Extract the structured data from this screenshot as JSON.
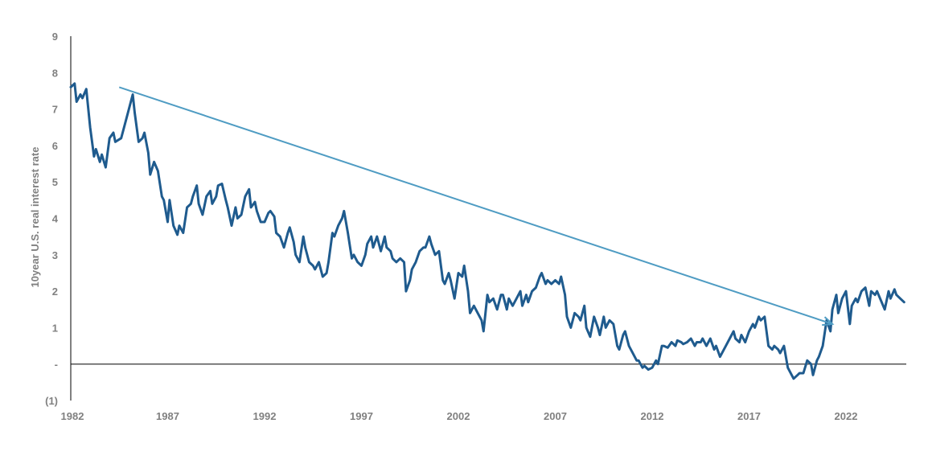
{
  "chart_data": {
    "type": "line",
    "title": "",
    "xlabel": "",
    "ylabel": "10year U.S. real interest rate",
    "xlim": [
      1982,
      2025.4
    ],
    "ylim": [
      -1,
      9
    ],
    "x_ticks": [
      "1982",
      "1987",
      "1992",
      "1997",
      "2002",
      "2007",
      "2012",
      "2017",
      "2022"
    ],
    "y_ticks": [
      {
        "value": 9,
        "label": "9"
      },
      {
        "value": 8,
        "label": "8"
      },
      {
        "value": 7,
        "label": "7"
      },
      {
        "value": 6,
        "label": "6"
      },
      {
        "value": 5,
        "label": "5"
      },
      {
        "value": 4,
        "label": "4"
      },
      {
        "value": 3,
        "label": "3"
      },
      {
        "value": 2,
        "label": "2"
      },
      {
        "value": 1,
        "label": "1"
      },
      {
        "value": 0,
        "label": "-"
      },
      {
        "value": -1,
        "label": "(1)"
      }
    ],
    "grid": false,
    "zero_line": true,
    "series": [
      {
        "color": "#1f5b8e",
        "points": [
          [
            1982.0,
            7.6
          ],
          [
            1982.2,
            7.7
          ],
          [
            1982.3,
            7.2
          ],
          [
            1982.5,
            7.4
          ],
          [
            1982.6,
            7.3
          ],
          [
            1982.8,
            7.55
          ],
          [
            1983.0,
            6.5
          ],
          [
            1983.2,
            5.7
          ],
          [
            1983.3,
            5.9
          ],
          [
            1983.5,
            5.55
          ],
          [
            1983.6,
            5.75
          ],
          [
            1983.8,
            5.4
          ],
          [
            1984.0,
            6.2
          ],
          [
            1984.2,
            6.35
          ],
          [
            1984.3,
            6.1
          ],
          [
            1984.6,
            6.2
          ],
          [
            1984.8,
            6.6
          ],
          [
            1985.0,
            7.0
          ],
          [
            1985.2,
            7.4
          ],
          [
            1985.3,
            6.9
          ],
          [
            1985.5,
            6.1
          ],
          [
            1985.7,
            6.2
          ],
          [
            1985.8,
            6.35
          ],
          [
            1986.0,
            5.8
          ],
          [
            1986.1,
            5.2
          ],
          [
            1986.3,
            5.55
          ],
          [
            1986.5,
            5.3
          ],
          [
            1986.7,
            4.6
          ],
          [
            1986.8,
            4.5
          ],
          [
            1987.0,
            3.9
          ],
          [
            1987.1,
            4.5
          ],
          [
            1987.3,
            3.8
          ],
          [
            1987.5,
            3.55
          ],
          [
            1987.6,
            3.8
          ],
          [
            1987.8,
            3.6
          ],
          [
            1988.0,
            4.3
          ],
          [
            1988.2,
            4.4
          ],
          [
            1988.3,
            4.6
          ],
          [
            1988.5,
            4.9
          ],
          [
            1988.6,
            4.4
          ],
          [
            1988.8,
            4.1
          ],
          [
            1989.0,
            4.6
          ],
          [
            1989.2,
            4.75
          ],
          [
            1989.3,
            4.4
          ],
          [
            1989.5,
            4.6
          ],
          [
            1989.6,
            4.9
          ],
          [
            1989.8,
            4.95
          ],
          [
            1990.0,
            4.5
          ],
          [
            1990.1,
            4.3
          ],
          [
            1990.3,
            3.8
          ],
          [
            1990.5,
            4.3
          ],
          [
            1990.6,
            4.0
          ],
          [
            1990.8,
            4.1
          ],
          [
            1991.0,
            4.6
          ],
          [
            1991.2,
            4.8
          ],
          [
            1991.3,
            4.3
          ],
          [
            1991.5,
            4.45
          ],
          [
            1991.6,
            4.2
          ],
          [
            1991.8,
            3.9
          ],
          [
            1992.0,
            3.9
          ],
          [
            1992.2,
            4.15
          ],
          [
            1992.3,
            4.2
          ],
          [
            1992.5,
            4.05
          ],
          [
            1992.6,
            3.6
          ],
          [
            1992.8,
            3.5
          ],
          [
            1993.0,
            3.2
          ],
          [
            1993.2,
            3.6
          ],
          [
            1993.3,
            3.75
          ],
          [
            1993.5,
            3.35
          ],
          [
            1993.6,
            3.0
          ],
          [
            1993.8,
            2.8
          ],
          [
            1994.0,
            3.5
          ],
          [
            1994.1,
            3.2
          ],
          [
            1994.3,
            2.8
          ],
          [
            1994.5,
            2.7
          ],
          [
            1994.6,
            2.6
          ],
          [
            1994.8,
            2.8
          ],
          [
            1995.0,
            2.4
          ],
          [
            1995.2,
            2.5
          ],
          [
            1995.3,
            2.8
          ],
          [
            1995.5,
            3.6
          ],
          [
            1995.6,
            3.5
          ],
          [
            1995.8,
            3.8
          ],
          [
            1996.0,
            4.0
          ],
          [
            1996.1,
            4.2
          ],
          [
            1996.3,
            3.6
          ],
          [
            1996.5,
            2.9
          ],
          [
            1996.6,
            3.0
          ],
          [
            1996.8,
            2.8
          ],
          [
            1997.0,
            2.7
          ],
          [
            1997.2,
            3.0
          ],
          [
            1997.3,
            3.3
          ],
          [
            1997.5,
            3.5
          ],
          [
            1997.6,
            3.2
          ],
          [
            1997.8,
            3.5
          ],
          [
            1998.0,
            3.1
          ],
          [
            1998.2,
            3.5
          ],
          [
            1998.3,
            3.2
          ],
          [
            1998.5,
            3.1
          ],
          [
            1998.6,
            2.9
          ],
          [
            1998.8,
            2.8
          ],
          [
            1999.0,
            2.9
          ],
          [
            1999.2,
            2.8
          ],
          [
            1999.3,
            2.0
          ],
          [
            1999.5,
            2.3
          ],
          [
            1999.6,
            2.6
          ],
          [
            1999.8,
            2.8
          ],
          [
            2000.0,
            3.1
          ],
          [
            2000.2,
            3.2
          ],
          [
            2000.3,
            3.2
          ],
          [
            2000.5,
            3.5
          ],
          [
            2000.6,
            3.3
          ],
          [
            2000.8,
            3.0
          ],
          [
            2001.0,
            3.1
          ],
          [
            2001.2,
            2.3
          ],
          [
            2001.3,
            2.2
          ],
          [
            2001.5,
            2.5
          ],
          [
            2001.6,
            2.3
          ],
          [
            2001.8,
            1.8
          ],
          [
            2002.0,
            2.5
          ],
          [
            2002.2,
            2.4
          ],
          [
            2002.3,
            2.7
          ],
          [
            2002.5,
            2.0
          ],
          [
            2002.6,
            1.4
          ],
          [
            2002.8,
            1.6
          ],
          [
            2003.0,
            1.4
          ],
          [
            2003.2,
            1.2
          ],
          [
            2003.3,
            0.9
          ],
          [
            2003.5,
            1.9
          ],
          [
            2003.6,
            1.7
          ],
          [
            2003.8,
            1.8
          ],
          [
            2004.0,
            1.5
          ],
          [
            2004.2,
            1.9
          ],
          [
            2004.3,
            1.9
          ],
          [
            2004.5,
            1.5
          ],
          [
            2004.6,
            1.8
          ],
          [
            2004.8,
            1.6
          ],
          [
            2005.0,
            1.8
          ],
          [
            2005.2,
            2.0
          ],
          [
            2005.3,
            1.6
          ],
          [
            2005.5,
            1.9
          ],
          [
            2005.6,
            1.7
          ],
          [
            2005.8,
            2.0
          ],
          [
            2006.0,
            2.1
          ],
          [
            2006.2,
            2.4
          ],
          [
            2006.3,
            2.5
          ],
          [
            2006.5,
            2.2
          ],
          [
            2006.6,
            2.3
          ],
          [
            2006.8,
            2.2
          ],
          [
            2007.0,
            2.3
          ],
          [
            2007.2,
            2.2
          ],
          [
            2007.3,
            2.4
          ],
          [
            2007.5,
            1.9
          ],
          [
            2007.6,
            1.3
          ],
          [
            2007.8,
            1.0
          ],
          [
            2008.0,
            1.4
          ],
          [
            2008.2,
            1.3
          ],
          [
            2008.3,
            1.2
          ],
          [
            2008.5,
            1.6
          ],
          [
            2008.6,
            1.0
          ],
          [
            2008.8,
            0.75
          ],
          [
            2009.0,
            1.3
          ],
          [
            2009.2,
            1.0
          ],
          [
            2009.3,
            0.8
          ],
          [
            2009.5,
            1.3
          ],
          [
            2009.6,
            1.0
          ],
          [
            2009.8,
            1.2
          ],
          [
            2010.0,
            1.1
          ],
          [
            2010.2,
            0.5
          ],
          [
            2010.3,
            0.4
          ],
          [
            2010.5,
            0.8
          ],
          [
            2010.6,
            0.9
          ],
          [
            2010.8,
            0.5
          ],
          [
            2011.0,
            0.3
          ],
          [
            2011.2,
            0.1
          ],
          [
            2011.3,
            0.1
          ],
          [
            2011.5,
            -0.1
          ],
          [
            2011.6,
            -0.05
          ],
          [
            2011.8,
            -0.15
          ],
          [
            2012.0,
            -0.1
          ],
          [
            2012.2,
            0.1
          ],
          [
            2012.3,
            0.0
          ],
          [
            2012.5,
            0.5
          ],
          [
            2012.6,
            0.5
          ],
          [
            2012.8,
            0.45
          ],
          [
            2013.0,
            0.6
          ],
          [
            2013.2,
            0.5
          ],
          [
            2013.3,
            0.65
          ],
          [
            2013.5,
            0.6
          ],
          [
            2013.6,
            0.55
          ],
          [
            2013.8,
            0.6
          ],
          [
            2014.0,
            0.7
          ],
          [
            2014.2,
            0.5
          ],
          [
            2014.3,
            0.6
          ],
          [
            2014.5,
            0.6
          ],
          [
            2014.6,
            0.7
          ],
          [
            2014.8,
            0.5
          ],
          [
            2015.0,
            0.7
          ],
          [
            2015.2,
            0.4
          ],
          [
            2015.3,
            0.5
          ],
          [
            2015.5,
            0.2
          ],
          [
            2015.6,
            0.3
          ],
          [
            2015.8,
            0.5
          ],
          [
            2016.0,
            0.7
          ],
          [
            2016.2,
            0.9
          ],
          [
            2016.3,
            0.7
          ],
          [
            2016.5,
            0.6
          ],
          [
            2016.6,
            0.8
          ],
          [
            2016.8,
            0.6
          ],
          [
            2017.0,
            0.9
          ],
          [
            2017.2,
            1.1
          ],
          [
            2017.3,
            1.0
          ],
          [
            2017.5,
            1.3
          ],
          [
            2017.6,
            1.2
          ],
          [
            2017.8,
            1.3
          ],
          [
            2018.0,
            0.5
          ],
          [
            2018.2,
            0.4
          ],
          [
            2018.3,
            0.5
          ],
          [
            2018.5,
            0.4
          ],
          [
            2018.6,
            0.3
          ],
          [
            2018.8,
            0.5
          ],
          [
            2019.0,
            -0.1
          ],
          [
            2019.2,
            -0.3
          ],
          [
            2019.3,
            -0.4
          ],
          [
            2019.5,
            -0.3
          ],
          [
            2019.6,
            -0.25
          ],
          [
            2019.8,
            -0.25
          ],
          [
            2020.0,
            0.1
          ],
          [
            2020.2,
            0.0
          ],
          [
            2020.3,
            -0.3
          ],
          [
            2020.5,
            0.1
          ],
          [
            2020.6,
            0.2
          ],
          [
            2020.8,
            0.5
          ],
          [
            2021.0,
            1.2
          ],
          [
            2021.2,
            0.9
          ],
          [
            2021.3,
            1.5
          ],
          [
            2021.5,
            1.9
          ],
          [
            2021.6,
            1.4
          ],
          [
            2021.8,
            1.8
          ],
          [
            2022.0,
            2.0
          ],
          [
            2022.2,
            1.1
          ],
          [
            2022.3,
            1.6
          ],
          [
            2022.5,
            1.8
          ],
          [
            2022.6,
            1.7
          ],
          [
            2022.8,
            2.0
          ],
          [
            2023.0,
            2.1
          ],
          [
            2023.2,
            1.6
          ],
          [
            2023.3,
            2.0
          ],
          [
            2023.5,
            1.9
          ],
          [
            2023.6,
            2.0
          ],
          [
            2023.8,
            1.75
          ],
          [
            2024.0,
            1.5
          ],
          [
            2024.2,
            2.0
          ],
          [
            2024.3,
            1.8
          ],
          [
            2024.5,
            2.05
          ],
          [
            2024.6,
            1.9
          ],
          [
            2024.8,
            1.8
          ],
          [
            2025.0,
            1.7
          ]
        ]
      }
    ],
    "annotations": [
      {
        "type": "arrow",
        "color": "#4f9cc3",
        "from": [
          1984.5,
          7.6
        ],
        "to": [
          2021.3,
          1.1
        ]
      }
    ]
  }
}
